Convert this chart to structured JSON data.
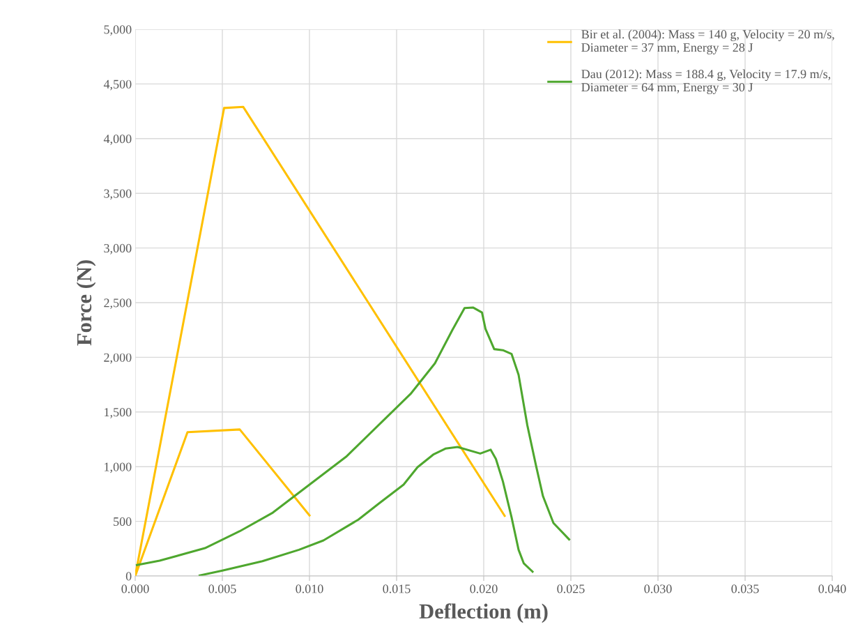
{
  "chart_data": {
    "type": "line",
    "xlabel": "Deflection (m)",
    "ylabel": "Force (N)",
    "xlim": [
      0,
      0.04
    ],
    "ylim": [
      0,
      5000
    ],
    "xticks": [
      {
        "value": 0,
        "label": "0.000"
      },
      {
        "value": 0.005,
        "label": "0.005"
      },
      {
        "value": 0.01,
        "label": "0.010"
      },
      {
        "value": 0.015,
        "label": "0.015"
      },
      {
        "value": 0.02,
        "label": "0.020"
      },
      {
        "value": 0.025,
        "label": "0.025"
      },
      {
        "value": 0.03,
        "label": "0.030"
      },
      {
        "value": 0.035,
        "label": "0.035"
      },
      {
        "value": 0.04,
        "label": "0.040"
      }
    ],
    "yticks": [
      0,
      500,
      {
        "value": 1000,
        "label": "1,000"
      },
      {
        "value": 1500,
        "label": "1,500"
      },
      {
        "value": 2000,
        "label": "2,000"
      },
      {
        "value": 2500,
        "label": "2,500"
      },
      {
        "value": 3000,
        "label": "3,000"
      },
      {
        "value": 3500,
        "label": "3,500"
      },
      {
        "value": 4000,
        "label": "4,000"
      },
      {
        "value": 4500,
        "label": "4,500"
      },
      {
        "value": 5000,
        "label": "5,000"
      }
    ],
    "grid": true,
    "legend": "top right",
    "marker": "none",
    "line_style": "solid",
    "series": [
      {
        "name": "Bir et al. (2004): Mass = 140 g, Velocity = 20 m/s,\nDiameter = 37 mm, Energy = 28 J",
        "color": "#ffc000",
        "x": [
          0,
          0.0051,
          0.0062,
          0.0212
        ],
        "values": [
          0,
          4280,
          4290,
          550
        ]
      },
      {
        "color": "#ffc000",
        "x": [
          0,
          0.003,
          0.006,
          0.01
        ],
        "values": [
          0,
          1315,
          1340,
          555
        ]
      },
      {
        "name": "Dau (2012): Mass = 188.4 g, Velocity = 17.9 m/s,\nDiameter = 64 mm, Energy = 30 J",
        "color": "#4ea72e",
        "x": [
          0.0001,
          0.0014,
          0.004,
          0.006,
          0.0079,
          0.0121,
          0.0158,
          0.0172,
          0.0182,
          0.0189,
          0.0194,
          0.0199,
          0.0201,
          0.0206,
          0.0211,
          0.0216,
          0.022,
          0.0225,
          0.023,
          0.0234,
          0.024,
          0.0249
        ],
        "values": [
          100,
          140,
          255,
          410,
          580,
          1090,
          1665,
          1945,
          2250,
          2450,
          2455,
          2410,
          2260,
          2075,
          2065,
          2030,
          1840,
          1380,
          1010,
          730,
          485,
          335
        ]
      },
      {
        "color": "#4ea72e",
        "x": [
          0.0037,
          0.005,
          0.0073,
          0.0094,
          0.0108,
          0.0128,
          0.014,
          0.0154,
          0.0162,
          0.0171,
          0.0178,
          0.0185,
          0.0198,
          0.0204,
          0.0207,
          0.0211,
          0.0216,
          0.022,
          0.0223,
          0.0228
        ],
        "values": [
          5,
          50,
          135,
          240,
          325,
          515,
          665,
          835,
          995,
          1110,
          1165,
          1180,
          1120,
          1155,
          1070,
          865,
          535,
          240,
          115,
          40
        ]
      }
    ]
  }
}
